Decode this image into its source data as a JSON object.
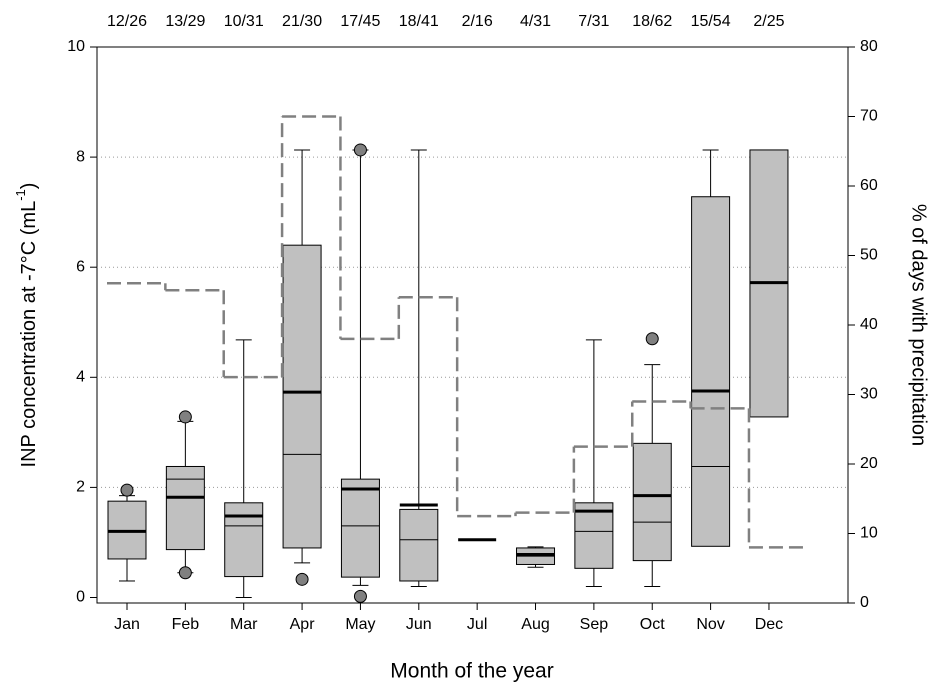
{
  "chart_data": {
    "type": "box",
    "x_label": "Month of the year",
    "y_label": {
      "text": "INP concentration at -7°C (mL",
      "superscript": "-1",
      "suffix": ")"
    },
    "y2_label": "% of days with precipitation",
    "categories": [
      "Jan",
      "Feb",
      "Mar",
      "Apr",
      "May",
      "Jun",
      "Jul",
      "Aug",
      "Sep",
      "Oct",
      "Nov",
      "Dec"
    ],
    "top_labels": [
      "12/26",
      "13/29",
      "10/31",
      "21/30",
      "17/45",
      "18/41",
      "2/16",
      "4/31",
      "7/31",
      "18/62",
      "15/54",
      "2/25"
    ],
    "box_color": "#c0c0c0",
    "outlier_color": "#808080",
    "boxes": [
      {
        "whisker_low": 0.3,
        "q1": 0.7,
        "median": 1.2,
        "q3": 1.75,
        "whisker_high": 1.85,
        "mean": 1.2,
        "outliers": [
          1.95
        ]
      },
      {
        "whisker_low": 0.45,
        "q1": 0.87,
        "median": 2.15,
        "q3": 2.38,
        "whisker_high": 3.2,
        "mean": 1.82,
        "outliers": [
          3.28,
          0.45
        ]
      },
      {
        "whisker_low": 0.0,
        "q1": 0.38,
        "median": 1.3,
        "q3": 1.72,
        "whisker_high": 4.68,
        "mean": 1.48,
        "outliers": []
      },
      {
        "whisker_low": 0.63,
        "q1": 0.9,
        "median": 2.6,
        "q3": 6.4,
        "whisker_high": 8.13,
        "mean": 3.73,
        "outliers": [
          0.33
        ]
      },
      {
        "whisker_low": 0.22,
        "q1": 0.37,
        "median": 1.3,
        "q3": 2.15,
        "whisker_high": 8.13,
        "mean": 1.97,
        "outliers": [
          8.13,
          0.02
        ]
      },
      {
        "whisker_low": 0.2,
        "q1": 0.3,
        "median": 1.05,
        "q3": 1.6,
        "whisker_high": 8.13,
        "mean": 1.68,
        "outliers": []
      },
      {
        "whisker_low": null,
        "q1": null,
        "median": null,
        "q3": null,
        "whisker_high": null,
        "mean": 1.05,
        "outliers": []
      },
      {
        "whisker_low": 0.55,
        "q1": 0.6,
        "median": 0.8,
        "q3": 0.9,
        "whisker_high": 0.92,
        "mean": 0.77,
        "outliers": []
      },
      {
        "whisker_low": 0.2,
        "q1": 0.53,
        "median": 1.2,
        "q3": 1.72,
        "whisker_high": 4.68,
        "mean": 1.57,
        "outliers": []
      },
      {
        "whisker_low": 0.2,
        "q1": 0.67,
        "median": 1.37,
        "q3": 2.8,
        "whisker_high": 4.23,
        "mean": 1.85,
        "outliers": [
          4.7
        ]
      },
      {
        "whisker_low": null,
        "q1": 0.93,
        "median": 2.38,
        "q3": 7.28,
        "whisker_high": 8.13,
        "mean": 3.75,
        "outliers": []
      },
      {
        "whisker_low": null,
        "q1": 3.28,
        "median": null,
        "q3": 8.13,
        "whisker_high": null,
        "mean": 5.72,
        "outliers": []
      }
    ],
    "step_series": {
      "axis": "y2",
      "color": "#808080",
      "values": [
        46,
        45,
        32.5,
        70,
        38,
        44,
        12.5,
        13,
        22.5,
        29,
        28,
        8
      ]
    },
    "ylim": [
      -0.1,
      10
    ],
    "yticks": [
      0,
      2,
      4,
      6,
      8,
      10
    ],
    "y2lim": [
      0,
      80
    ],
    "y2ticks": [
      0,
      10,
      20,
      30,
      40,
      50,
      60,
      70,
      80
    ],
    "grid": true
  }
}
